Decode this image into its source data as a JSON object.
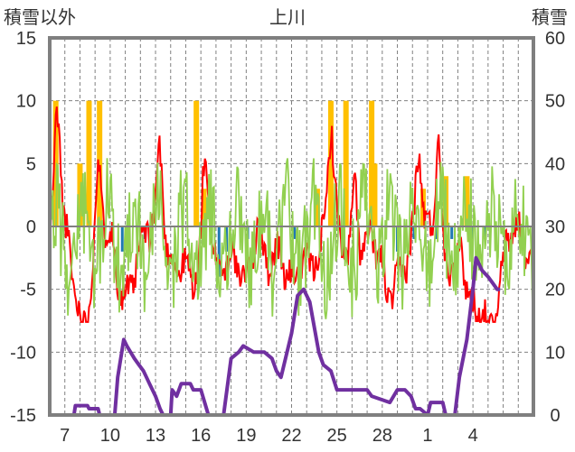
{
  "chart_data": {
    "type": "line",
    "title": "上川",
    "left_axis_label": "積雪以外",
    "right_axis_label": "積雪",
    "left_ylim": [
      -15,
      15
    ],
    "left_ticks": [
      15,
      10,
      5,
      0,
      -5,
      -10,
      -15
    ],
    "right_ylim": [
      0,
      60
    ],
    "right_ticks": [
      60,
      50,
      40,
      30,
      20,
      10,
      0
    ],
    "xlim": [
      0,
      32
    ],
    "x_ticks": [
      {
        "pos": 1,
        "label": "7"
      },
      {
        "pos": 4,
        "label": "10"
      },
      {
        "pos": 7,
        "label": "13"
      },
      {
        "pos": 10,
        "label": "16"
      },
      {
        "pos": 13,
        "label": "19"
      },
      {
        "pos": 16,
        "label": "22"
      },
      {
        "pos": 19,
        "label": "25"
      },
      {
        "pos": 22,
        "label": "28"
      },
      {
        "pos": 25,
        "label": "1"
      },
      {
        "pos": 28,
        "label": "4"
      }
    ],
    "grid": true,
    "colors": {
      "snowfall": "#ffc000",
      "precipitation": "#1f77b4",
      "temperature": "#ff0000",
      "wind": "#92d050",
      "snow_depth": "#7030a0",
      "grid": "#808080",
      "frame": "#7f7f7f"
    },
    "snowfall_bars": [
      [
        0.4,
        10
      ],
      [
        2.6,
        10
      ],
      [
        3.3,
        10
      ],
      [
        9.7,
        10
      ],
      [
        18.6,
        10
      ],
      [
        19.6,
        10
      ],
      [
        21.3,
        10
      ],
      [
        2.0,
        5
      ],
      [
        10.2,
        3
      ],
      [
        17.7,
        3
      ],
      [
        21.5,
        5
      ],
      [
        24.7,
        3
      ],
      [
        26.2,
        4
      ],
      [
        27.6,
        4
      ]
    ],
    "precip_bars": [
      [
        4.8,
        -2
      ],
      [
        6.3,
        -1
      ],
      [
        10.7,
        -1
      ],
      [
        11.2,
        -4
      ],
      [
        11.7,
        -2
      ],
      [
        13.1,
        -1
      ],
      [
        16.2,
        -1
      ],
      [
        23.0,
        -2
      ],
      [
        24.1,
        -1
      ],
      [
        25.6,
        -1
      ],
      [
        26.6,
        -1
      ],
      [
        27.9,
        -1
      ],
      [
        28.8,
        -1
      ]
    ],
    "snow_depth": [
      [
        0,
        0
      ],
      [
        1.6,
        0
      ],
      [
        1.7,
        1.5
      ],
      [
        2.5,
        1.5
      ],
      [
        2.6,
        1
      ],
      [
        3.2,
        1
      ],
      [
        3.3,
        0
      ],
      [
        4.3,
        0
      ],
      [
        4.5,
        6
      ],
      [
        4.9,
        12
      ],
      [
        5.1,
        11
      ],
      [
        5.6,
        9
      ],
      [
        5.9,
        8
      ],
      [
        6.2,
        7
      ],
      [
        6.6,
        5
      ],
      [
        7.0,
        3
      ],
      [
        7.3,
        1
      ],
      [
        7.5,
        0
      ],
      [
        8.0,
        0
      ],
      [
        8.1,
        4
      ],
      [
        8.4,
        3
      ],
      [
        8.7,
        5
      ],
      [
        9.0,
        5
      ],
      [
        9.3,
        5
      ],
      [
        9.5,
        4
      ],
      [
        9.8,
        4
      ],
      [
        10.0,
        4
      ],
      [
        10.5,
        0
      ],
      [
        11.5,
        0
      ],
      [
        12.0,
        9
      ],
      [
        12.5,
        10
      ],
      [
        12.8,
        11
      ],
      [
        13.5,
        10
      ],
      [
        14.2,
        10
      ],
      [
        14.7,
        9
      ],
      [
        15.0,
        7
      ],
      [
        15.3,
        6
      ],
      [
        15.6,
        9
      ],
      [
        16.0,
        13
      ],
      [
        16.4,
        19
      ],
      [
        16.8,
        20
      ],
      [
        17.2,
        18
      ],
      [
        17.5,
        14
      ],
      [
        17.8,
        10
      ],
      [
        18.1,
        8
      ],
      [
        18.6,
        7
      ],
      [
        19.0,
        4
      ],
      [
        21.0,
        4
      ],
      [
        21.3,
        3
      ],
      [
        22.5,
        2
      ],
      [
        23.0,
        4
      ],
      [
        23.5,
        4
      ],
      [
        23.9,
        3
      ],
      [
        24.2,
        1
      ],
      [
        24.5,
        1
      ],
      [
        25.0,
        0
      ],
      [
        25.2,
        2
      ],
      [
        26.0,
        2
      ],
      [
        26.2,
        0
      ],
      [
        26.8,
        0
      ],
      [
        27.1,
        6
      ],
      [
        27.6,
        12
      ],
      [
        28.0,
        20
      ],
      [
        28.2,
        25
      ],
      [
        28.6,
        23
      ],
      [
        29.0,
        22
      ],
      [
        29.3,
        21
      ],
      [
        29.6,
        20
      ],
      [
        29.8,
        20
      ]
    ]
  }
}
